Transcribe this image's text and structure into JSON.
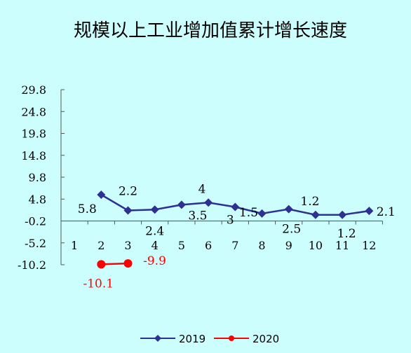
{
  "chart_data": {
    "type": "line",
    "title": "规模以上工业增加值累计增长速度",
    "xlabel": "",
    "ylabel": "",
    "ylim": [
      -10.2,
      29.8
    ],
    "y_ticks": [
      "29.8",
      "24.8",
      "19.8",
      "14.8",
      "9.8",
      "4.8",
      "-0.2",
      "-5.2",
      "-10.2"
    ],
    "y_tick_values": [
      29.8,
      24.8,
      19.8,
      14.8,
      9.8,
      4.8,
      -0.2,
      -5.2,
      -10.2
    ],
    "categories": [
      "1",
      "2",
      "3",
      "4",
      "5",
      "6",
      "7",
      "8",
      "9",
      "10",
      "11",
      "12"
    ],
    "grid": false,
    "legend_position": "bottom",
    "series": [
      {
        "name": "2019",
        "color": "#2e3192",
        "marker": "diamond",
        "x": [
          2,
          3,
          4,
          5,
          6,
          7,
          8,
          9,
          10,
          11,
          12
        ],
        "values": [
          5.8,
          2.2,
          2.4,
          3.5,
          4.0,
          3.0,
          1.5,
          2.5,
          1.2,
          1.2,
          2.1
        ],
        "labels": [
          "5.8",
          "2.2",
          "2.4",
          "3.5",
          "4",
          "3",
          "1.5",
          "2.5",
          "1.2",
          "1.2",
          "2.1"
        ]
      },
      {
        "name": "2020",
        "color": "#ff0000",
        "marker": "circle",
        "x": [
          2,
          3
        ],
        "values": [
          -10.1,
          -9.9
        ],
        "labels": [
          "-10.1",
          "-9.9"
        ]
      }
    ]
  }
}
